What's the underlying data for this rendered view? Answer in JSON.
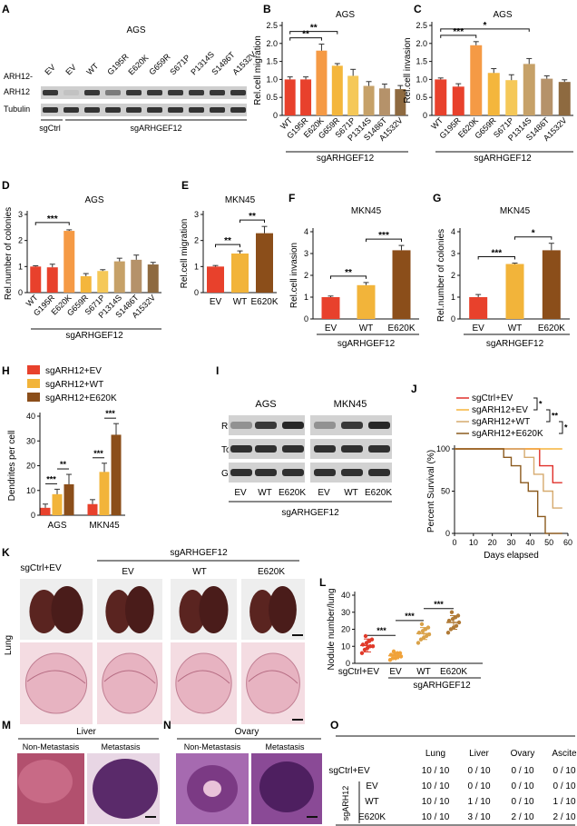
{
  "panel_letters": [
    "A",
    "B",
    "C",
    "D",
    "E",
    "F",
    "G",
    "H",
    "I",
    "J",
    "K",
    "L",
    "M",
    "N",
    "O"
  ],
  "colors": {
    "ev": "#e8412c",
    "wt": "#f2b43a",
    "e620k": "#8b4e1a",
    "e620k_bright": "#f59a45",
    "g659r": "#f4b63c",
    "s671p": "#f5c858",
    "p1314s": "#c6a168",
    "s1486t": "#b5926a",
    "a1532v": "#8e6a40",
    "nodule_ctrl": "#e03a2a",
    "nodule_ev": "#f0a23a",
    "nodule_wt": "#d9a24a",
    "nodule_e620k": "#b07a36",
    "he_pink": "#c0688a",
    "he_purple": "#6a2e6e",
    "blot_bg": "#d4d4d4",
    "band": "#222222"
  },
  "panelA": {
    "title": "AGS",
    "row_prefix": "ARH12-",
    "lanes": [
      "EV",
      "EV",
      "WT",
      "G195R",
      "E620K",
      "G659R",
      "S671P",
      "P1314S",
      "S1486T",
      "A1532V"
    ],
    "rows": [
      "ARH12",
      "Tubulin"
    ],
    "group_ctrl": "sgCtrl",
    "group_sg": "sgARHGEF12"
  },
  "chart_data": [
    {
      "panel": "B",
      "type": "bar",
      "title": "AGS",
      "ylabel": "Rel.cell migration",
      "group_label": "sgARHGEF12",
      "ylim": [
        0,
        2.5
      ],
      "yticks": [
        0,
        0.5,
        1.0,
        1.5,
        2.0,
        2.5
      ],
      "categories": [
        "WT",
        "G195R",
        "E620K",
        "G659R",
        "S671P",
        "P1314S",
        "S1486T",
        "A1532V"
      ],
      "values": [
        1.0,
        1.0,
        1.8,
        1.38,
        1.1,
        0.82,
        0.75,
        0.73
      ],
      "errors": [
        0.07,
        0.07,
        0.18,
        0.06,
        0.18,
        0.12,
        0.12,
        0.1
      ],
      "colors": [
        "#e8412c",
        "#e8412c",
        "#f59a45",
        "#f4b63c",
        "#f5c858",
        "#c6a168",
        "#b5926a",
        "#8e6a40"
      ],
      "significance": [
        {
          "from": 0,
          "to": 2,
          "label": "**"
        },
        {
          "from": 0,
          "to": 3,
          "label": "**"
        }
      ]
    },
    {
      "panel": "C",
      "type": "bar",
      "title": "AGS",
      "ylabel": "Rel.cell invasion",
      "group_label": "sgARHGEF12",
      "ylim": [
        0,
        2.5
      ],
      "yticks": [
        0,
        0.5,
        1.0,
        1.5,
        2.0,
        2.5
      ],
      "categories": [
        "WT",
        "G195R",
        "E620K",
        "G659R",
        "S671P",
        "P1314S",
        "S1486T",
        "A1532V"
      ],
      "values": [
        1.0,
        0.8,
        1.95,
        1.18,
        0.98,
        1.43,
        1.02,
        0.93
      ],
      "errors": [
        0.04,
        0.08,
        0.1,
        0.12,
        0.15,
        0.15,
        0.08,
        0.06
      ],
      "colors": [
        "#e8412c",
        "#e8412c",
        "#f59a45",
        "#f4b63c",
        "#f5c858",
        "#c6a168",
        "#b5926a",
        "#8e6a40"
      ],
      "significance": [
        {
          "from": 0,
          "to": 2,
          "label": "***"
        },
        {
          "from": 0,
          "to": 5,
          "label": "*"
        }
      ]
    },
    {
      "panel": "D",
      "type": "bar",
      "title": "AGS",
      "ylabel": "Rel.number of colonies",
      "group_label": "sgARHGEF12",
      "ylim": [
        0,
        3
      ],
      "yticks": [
        0,
        1,
        2,
        3
      ],
      "categories": [
        "WT",
        "G195R",
        "E620K",
        "G659R",
        "S671P",
        "P1314S",
        "S1486T",
        "A1532V"
      ],
      "values": [
        1.0,
        0.97,
        2.37,
        0.63,
        0.83,
        1.2,
        1.26,
        1.08
      ],
      "errors": [
        0.03,
        0.12,
        0.04,
        0.1,
        0.05,
        0.12,
        0.18,
        0.08
      ],
      "colors": [
        "#e8412c",
        "#e8412c",
        "#f59a45",
        "#f4b63c",
        "#f5c858",
        "#c6a168",
        "#b5926a",
        "#8e6a40"
      ],
      "significance": [
        {
          "from": 0,
          "to": 2,
          "label": "***"
        }
      ]
    },
    {
      "panel": "E",
      "type": "bar",
      "title": "MKN45",
      "ylabel": "Rel.cell migration",
      "group_label": "",
      "ylim": [
        0,
        3
      ],
      "yticks": [
        0,
        1,
        2,
        3
      ],
      "categories": [
        "EV",
        "WT",
        "E620K"
      ],
      "values": [
        1.0,
        1.5,
        2.28
      ],
      "errors": [
        0.04,
        0.1,
        0.26
      ],
      "colors": [
        "#e8412c",
        "#f2b43a",
        "#8b4e1a"
      ],
      "significance": [
        {
          "from": 0,
          "to": 1,
          "label": "**"
        },
        {
          "from": 1,
          "to": 2,
          "label": "**"
        }
      ]
    },
    {
      "panel": "F",
      "type": "bar",
      "title": "MKN45",
      "ylabel": "Rel.cell invasion",
      "group_label": "sgARHGEF12",
      "ylim": [
        0,
        4
      ],
      "yticks": [
        0,
        1,
        2,
        3,
        4
      ],
      "categories": [
        "EV",
        "WT",
        "E620K"
      ],
      "values": [
        1.0,
        1.55,
        3.15
      ],
      "errors": [
        0.05,
        0.12,
        0.22
      ],
      "colors": [
        "#e8412c",
        "#f2b43a",
        "#8b4e1a"
      ],
      "significance": [
        {
          "from": 0,
          "to": 1,
          "label": "**"
        },
        {
          "from": 1,
          "to": 2,
          "label": "***"
        }
      ]
    },
    {
      "panel": "G",
      "type": "bar",
      "title": "MKN45",
      "ylabel": "Rel.number of colonies",
      "group_label": "sgARHGEF12",
      "ylim": [
        0,
        4
      ],
      "yticks": [
        0,
        1,
        2,
        3,
        4
      ],
      "categories": [
        "EV",
        "WT",
        "E620K"
      ],
      "values": [
        1.0,
        2.52,
        3.15
      ],
      "errors": [
        0.12,
        0.04,
        0.32
      ],
      "colors": [
        "#e8412c",
        "#f2b43a",
        "#8b4e1a"
      ],
      "significance": [
        {
          "from": 0,
          "to": 1,
          "label": "***"
        },
        {
          "from": 1,
          "to": 2,
          "label": "*"
        }
      ]
    },
    {
      "panel": "H",
      "type": "bar",
      "ylabel": "Dendrites per cell",
      "ylim": [
        0,
        40
      ],
      "yticks": [
        0,
        10,
        20,
        30,
        40
      ],
      "categories": [
        "AGS",
        "MKN45"
      ],
      "series": [
        {
          "name": "sgARH12+EV",
          "values": [
            3,
            4.5
          ],
          "errors": [
            1.5,
            1.8
          ],
          "color": "#e8412c"
        },
        {
          "name": "sgARH12+WT",
          "values": [
            8.5,
            17.5
          ],
          "errors": [
            2.0,
            3.5
          ],
          "color": "#f2b43a"
        },
        {
          "name": "sgARH12+E620K",
          "values": [
            12.5,
            32.5
          ],
          "errors": [
            4.0,
            4.5
          ],
          "color": "#8b4e1a"
        }
      ],
      "significance": [
        {
          "group": 0,
          "from": 0,
          "to": 1,
          "label": "***"
        },
        {
          "group": 0,
          "from": 1,
          "to": 2,
          "label": "**"
        },
        {
          "group": 1,
          "from": 0,
          "to": 1,
          "label": "***"
        },
        {
          "group": 1,
          "from": 1,
          "to": 2,
          "label": "***"
        }
      ]
    },
    {
      "panel": "J",
      "type": "line",
      "ylabel": "Percent Survival (%)",
      "xlabel": "Days elapsed",
      "xlim": [
        0,
        60
      ],
      "ylim": [
        0,
        100
      ],
      "xticks": [
        0,
        10,
        20,
        30,
        40,
        50,
        60
      ],
      "yticks": [
        0,
        50,
        100
      ],
      "series": [
        {
          "name": "sgCtrl+EV",
          "color": "#e0302a",
          "x": [
            0,
            45,
            45,
            52,
            52,
            57
          ],
          "y": [
            100,
            100,
            80,
            80,
            60,
            60
          ]
        },
        {
          "name": "sgARH12+EV",
          "color": "#f5b43a",
          "x": [
            0,
            57
          ],
          "y": [
            100,
            100
          ]
        },
        {
          "name": "sgARH12+WT",
          "color": "#d6aa6e",
          "x": [
            0,
            37,
            37,
            42,
            42,
            47,
            47,
            52,
            52,
            57
          ],
          "y": [
            100,
            100,
            90,
            90,
            70,
            70,
            50,
            50,
            30,
            30
          ]
        },
        {
          "name": "sgARH12+E620K",
          "color": "#8b5a1e",
          "x": [
            0,
            26,
            26,
            30,
            30,
            35,
            35,
            39,
            39,
            44,
            44,
            48,
            48,
            57
          ],
          "y": [
            100,
            100,
            90,
            90,
            80,
            80,
            60,
            60,
            50,
            50,
            20,
            20,
            0,
            0
          ]
        }
      ],
      "significance": [
        "*",
        "**",
        "*"
      ]
    },
    {
      "panel": "L",
      "type": "scatter",
      "ylabel": "Nodule number/lung",
      "group_label": "sgARHGEF12",
      "ylim": [
        0,
        40
      ],
      "yticks": [
        0,
        10,
        20,
        30,
        40
      ],
      "categories": [
        "sgCtrl+EV",
        "EV",
        "WT",
        "E620K"
      ],
      "series": [
        {
          "name": "sgCtrl+EV",
          "color": "#e03a2a",
          "mean": 10.5,
          "sd": 3.8,
          "values": [
            6,
            8,
            9,
            10,
            10,
            11,
            12,
            13,
            14,
            16
          ]
        },
        {
          "name": "EV",
          "color": "#f0a23a",
          "mean": 4.5,
          "sd": 1.8,
          "values": [
            2,
            3,
            3,
            4,
            4,
            5,
            5,
            6,
            6,
            7
          ]
        },
        {
          "name": "WT",
          "color": "#d9a24a",
          "mean": 17.5,
          "sd": 3.5,
          "values": [
            12,
            14,
            15,
            16,
            17,
            18,
            19,
            20,
            21,
            23
          ]
        },
        {
          "name": "E620K",
          "color": "#b07a36",
          "mean": 24,
          "sd": 4,
          "values": [
            18,
            20,
            21,
            22,
            24,
            25,
            26,
            27,
            28,
            30
          ]
        }
      ],
      "significance": [
        {
          "from": 0,
          "to": 1,
          "label": "***"
        },
        {
          "from": 1,
          "to": 2,
          "label": "***"
        },
        {
          "from": 2,
          "to": 3,
          "label": "***"
        }
      ]
    },
    {
      "panel": "O",
      "type": "table",
      "columns": [
        "",
        "Lung",
        "Liver",
        "Ovary",
        "Ascite"
      ],
      "group_label": "sgARH12",
      "rows": [
        {
          "label": "sgCtrl+EV",
          "cells": [
            "10 / 10",
            "0 / 10",
            "0 / 10",
            "0 / 10"
          ]
        },
        {
          "label": "EV",
          "cells": [
            "10 / 10",
            "0 / 10",
            "0 / 10",
            "0 / 10"
          ]
        },
        {
          "label": "WT",
          "cells": [
            "10 / 10",
            "1 / 10",
            "0 / 10",
            "1 / 10"
          ]
        },
        {
          "label": "E620K",
          "cells": [
            "10 / 10",
            "3 / 10",
            "2 / 10",
            "2 / 10"
          ]
        }
      ]
    }
  ],
  "panelH_legend": [
    "sgARH12+EV",
    "sgARH12+WT",
    "sgARH12+E620K"
  ],
  "panelI": {
    "cell_lines": [
      "AGS",
      "MKN45"
    ],
    "rows": [
      "RhoA-GTP",
      "Total RhoA",
      "GAPDH"
    ],
    "lanes": [
      "EV",
      "WT",
      "E620K"
    ],
    "group_label": "sgARHGEF12"
  },
  "panelK": {
    "group_label": "sgARHGEF12",
    "columns": [
      "sgCtrl+EV",
      "EV",
      "WT",
      "E620K"
    ],
    "row_label": "Lung"
  },
  "panelM": {
    "title": "Liver",
    "columns": [
      "Non-Metastasis",
      "Metastasis"
    ]
  },
  "panelN": {
    "title": "Ovary",
    "columns": [
      "Non-Metastasis",
      "Metastasis"
    ]
  }
}
